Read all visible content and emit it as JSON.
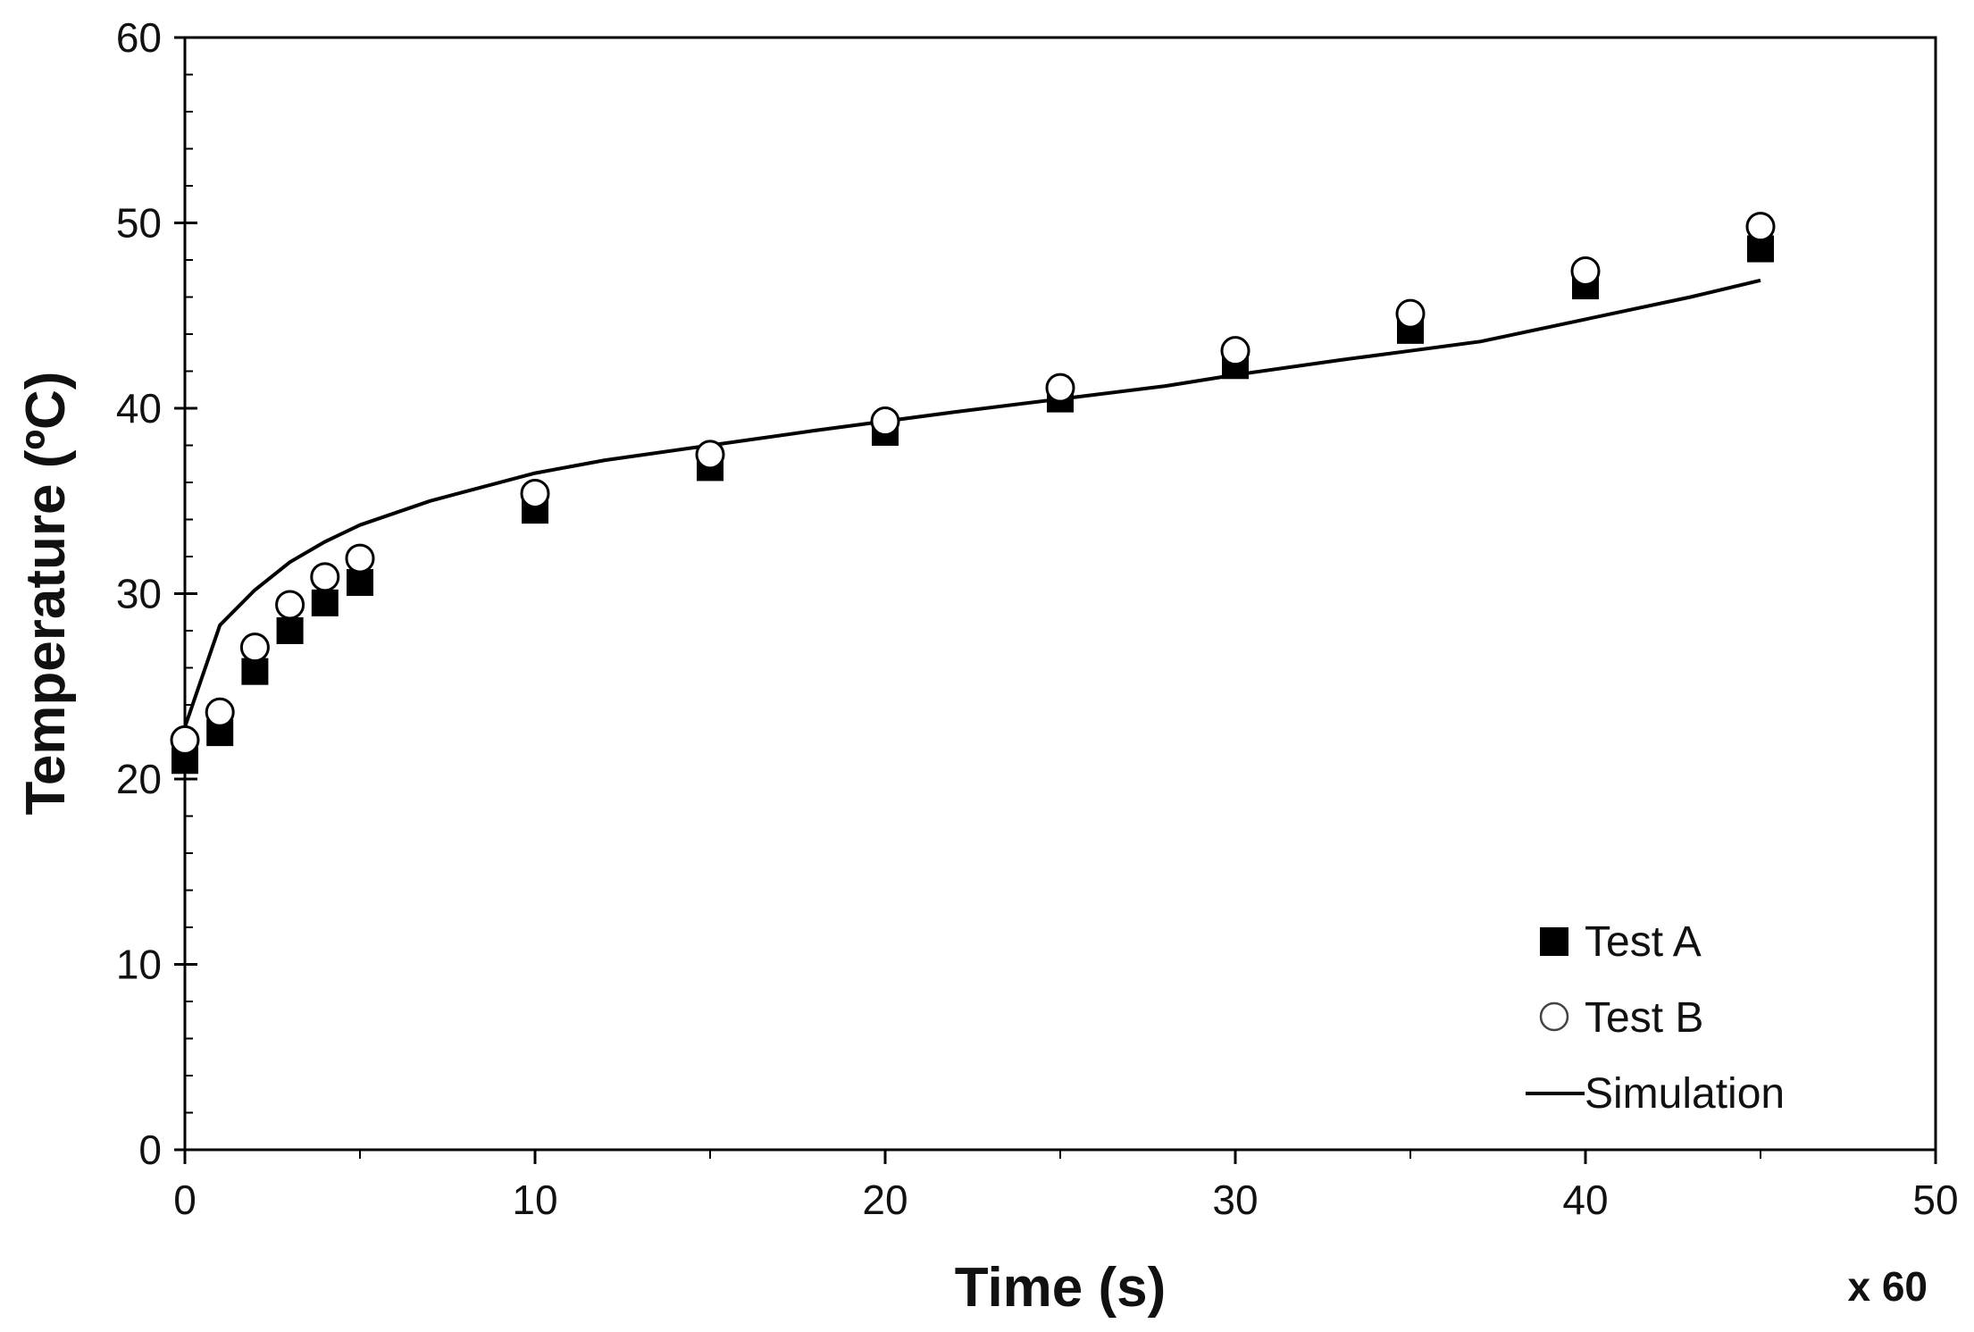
{
  "chart_data": {
    "type": "scatter",
    "title": "",
    "xlabel": "Time (s)",
    "ylabel": "Temperature (ºC)",
    "x_multiplier": "x 60",
    "xlim": [
      0,
      50
    ],
    "ylim": [
      0,
      60
    ],
    "x_ticks": [
      0,
      10,
      20,
      30,
      40,
      50
    ],
    "y_ticks": [
      0,
      10,
      20,
      30,
      40,
      50,
      60
    ],
    "legend_position": "bottom-right",
    "grid": false,
    "series": [
      {
        "name": "Test A",
        "kind": "marker",
        "marker": "filled-square",
        "color": "#000000",
        "x": [
          0,
          1,
          2,
          3,
          4,
          5,
          10,
          15,
          20,
          25,
          30,
          35,
          40,
          45
        ],
        "y": [
          21.0,
          22.5,
          25.8,
          28.0,
          29.5,
          30.6,
          34.5,
          36.8,
          38.7,
          40.5,
          42.3,
          44.2,
          46.6,
          48.6
        ]
      },
      {
        "name": "Test B",
        "kind": "marker",
        "marker": "open-circle",
        "color": "#000000",
        "x": [
          0,
          1,
          2,
          3,
          4,
          5,
          10,
          15,
          20,
          25,
          30,
          35,
          40,
          45
        ],
        "y": [
          22.1,
          23.6,
          27.1,
          29.4,
          30.9,
          31.9,
          35.4,
          37.5,
          39.3,
          41.1,
          43.1,
          45.1,
          47.4,
          49.8
        ]
      },
      {
        "name": "Simulation",
        "kind": "line",
        "color": "#000000",
        "x": [
          0,
          1,
          2,
          3,
          4,
          5,
          7,
          10,
          12,
          15,
          18,
          20,
          22,
          25,
          28,
          30,
          33,
          35,
          37,
          40,
          43,
          45
        ],
        "y": [
          22.8,
          28.3,
          30.2,
          31.7,
          32.8,
          33.7,
          35.0,
          36.5,
          37.2,
          38.0,
          38.8,
          39.3,
          39.8,
          40.5,
          41.2,
          41.8,
          42.6,
          43.1,
          43.6,
          44.8,
          46.0,
          46.9
        ]
      }
    ]
  }
}
